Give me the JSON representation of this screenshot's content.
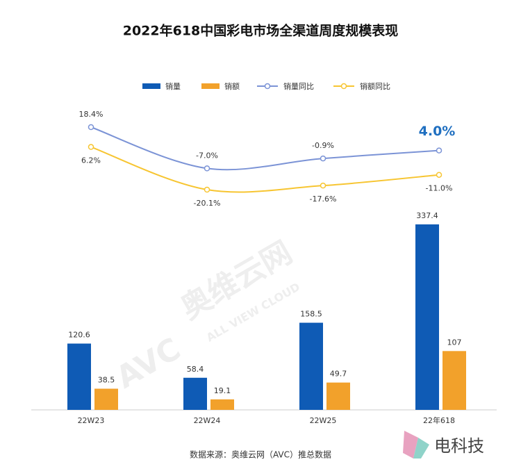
{
  "chart_data": {
    "type": "bar-line",
    "title": "2022年618中国彩电市场全渠道周度规模表现",
    "categories": [
      "22W23",
      "22W24",
      "22W25",
      "22年618"
    ],
    "series": [
      {
        "name": "销量",
        "color": "#0f5bb5",
        "values": [
          120.6,
          58.4,
          158.5,
          337.4
        ]
      },
      {
        "name": "销额",
        "color": "#f2a12b",
        "values": [
          38.5,
          19.1,
          49.7,
          107
        ]
      },
      {
        "name": "销量同比",
        "color": "#7b93d6",
        "axis": "y2",
        "values": [
          18.4,
          -7.0,
          -0.9,
          4.0
        ],
        "value_labels": [
          "18.4%",
          "-7.0%",
          "-0.9%",
          "4.0%"
        ]
      },
      {
        "name": "销额同比",
        "color": "#f7c531",
        "axis": "y2",
        "values": [
          6.2,
          -20.1,
          -17.6,
          -11.0
        ],
        "value_labels": [
          "6.2%",
          "-20.1%",
          "-17.6%",
          "-11.0%"
        ]
      }
    ],
    "source": "数据来源：奥维云网（AVC）推总数据",
    "watermarks": [
      "AVC",
      "奥维云网",
      "ALL VIEW CLOUD",
      "电科技"
    ]
  }
}
